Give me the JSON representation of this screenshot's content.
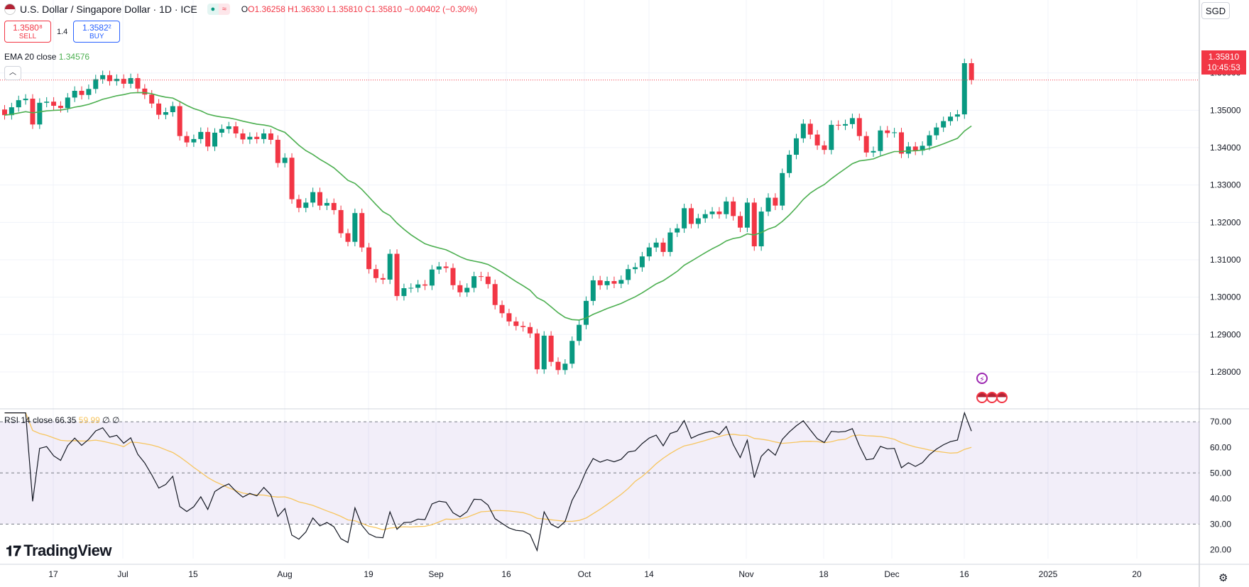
{
  "header": {
    "symbol_title": "U.S. Dollar / Singapore Dollar · 1D · ICE",
    "open": "O1.36258",
    "high": "H1.36330",
    "low": "L1.35810",
    "close": "C1.35810",
    "change": "−0.00402 (−0.30%)",
    "pill_dot": "●",
    "pill_wave": "≈"
  },
  "trade": {
    "sell_price": "1.3580⁸",
    "sell_label": "SELL",
    "spread": "1.4",
    "buy_price": "1.3582²",
    "buy_label": "BUY"
  },
  "currency_button": "SGD",
  "last_price_label": "1.35810",
  "countdown": "10:45:53",
  "collapse_icon": "︿",
  "branding": "TradingView",
  "colors": {
    "up": "#089981",
    "down": "#f23645",
    "ema": "#4caf50",
    "rsi": "#131722",
    "rsi_ma": "#f7c55f",
    "rsi_band": "#7e57c2"
  },
  "chart_data": [
    {
      "type": "candlestick",
      "title": "U.S. Dollar / Singapore Dollar · 1D · ICE",
      "x_ticks": [
        "17",
        "Jul",
        "15",
        "Aug",
        "19",
        "Sep",
        "16",
        "Oct",
        "14",
        "Nov",
        "18",
        "Dec",
        "16",
        "2025",
        "20"
      ],
      "y_ticks": [
        "1.36000",
        "1.35000",
        "1.34000",
        "1.33000",
        "1.32000",
        "1.31000",
        "1.30000",
        "1.29000",
        "1.28000"
      ],
      "ylim": [
        1.2705,
        1.3795
      ],
      "last_price": 1.3581,
      "closes": [
        1.3487,
        1.3508,
        1.3527,
        1.3531,
        1.3462,
        1.352,
        1.3523,
        1.3512,
        1.3506,
        1.3534,
        1.3552,
        1.3541,
        1.3557,
        1.3583,
        1.3594,
        1.3578,
        1.3584,
        1.3571,
        1.3586,
        1.3558,
        1.3542,
        1.3518,
        1.3488,
        1.3495,
        1.3511,
        1.3431,
        1.3414,
        1.3423,
        1.3442,
        1.3403,
        1.344,
        1.345,
        1.3457,
        1.3438,
        1.3422,
        1.3429,
        1.3423,
        1.3438,
        1.3421,
        1.3359,
        1.3373,
        1.3262,
        1.3239,
        1.3253,
        1.3281,
        1.3245,
        1.3252,
        1.3233,
        1.3171,
        1.3148,
        1.3225,
        1.3133,
        1.3075,
        1.3051,
        1.3047,
        1.3116,
        1.3003,
        1.3024,
        1.3025,
        1.3034,
        1.3031,
        1.3074,
        1.3082,
        1.3078,
        1.3032,
        1.3013,
        1.3025,
        1.3056,
        1.3055,
        1.3035,
        1.2979,
        1.2957,
        1.2935,
        1.2923,
        1.292,
        1.2903,
        1.2807,
        1.2897,
        1.2827,
        1.2805,
        1.2822,
        1.2883,
        1.2926,
        1.299,
        1.3045,
        1.3032,
        1.3043,
        1.3036,
        1.3046,
        1.3075,
        1.308,
        1.3109,
        1.3133,
        1.3146,
        1.3121,
        1.3173,
        1.3184,
        1.3238,
        1.3196,
        1.3211,
        1.3222,
        1.3229,
        1.3222,
        1.3256,
        1.3217,
        1.3186,
        1.3253,
        1.3136,
        1.3229,
        1.3266,
        1.3245,
        1.3332,
        1.3381,
        1.3425,
        1.3464,
        1.3435,
        1.3406,
        1.3394,
        1.3461,
        1.3459,
        1.3463,
        1.3479,
        1.3431,
        1.3387,
        1.3391,
        1.3446,
        1.3439,
        1.3441,
        1.3384,
        1.3403,
        1.3392,
        1.3405,
        1.3433,
        1.3454,
        1.3471,
        1.3483,
        1.3489,
        1.3626,
        1.3581
      ],
      "ema": {
        "name": "EMA 20 close",
        "value": "1.34576",
        "last": 1.3458
      },
      "rsi": {
        "name": "RSI 14 close",
        "value": "66.35",
        "ma_value": "59.99",
        "extra1": "∅",
        "extra2": "∅",
        "y_ticks": [
          "70.00",
          "60.00",
          "50.00",
          "40.00",
          "30.00",
          "20.00"
        ],
        "ylim": [
          16.5,
          74.5
        ],
        "upper_band": 70,
        "middle": 50,
        "lower_band": 30,
        "last": 66.35,
        "ma_last": 59.99
      }
    }
  ]
}
